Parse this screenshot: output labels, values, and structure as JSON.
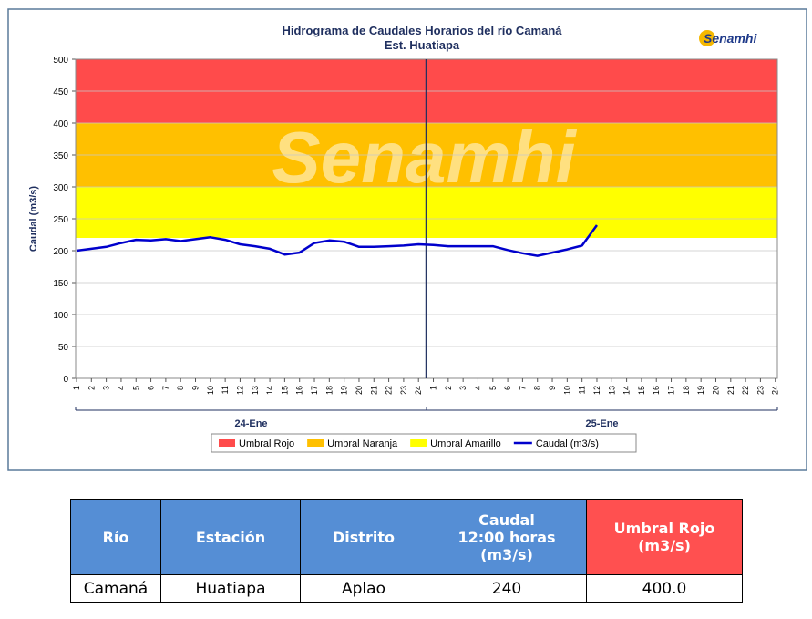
{
  "chart_data": {
    "type": "line",
    "title": "Hidrograma de Caudales Horarios del río Camaná",
    "subtitle": "Est. Huatiapa",
    "logo": "Senamhi",
    "watermark": "Senamhi",
    "y_label": "Caudal  (m3/s)",
    "categories": [
      "1",
      "2",
      "3",
      "4",
      "5",
      "6",
      "7",
      "8",
      "9",
      "10",
      "11",
      "12",
      "13",
      "14",
      "15",
      "16",
      "17",
      "18",
      "19",
      "20",
      "21",
      "22",
      "23",
      "24",
      "1",
      "2",
      "3",
      "4",
      "5",
      "6",
      "7",
      "8",
      "9",
      "10",
      "11",
      "12",
      "13",
      "14",
      "15",
      "16",
      "17",
      "18",
      "19",
      "20",
      "21",
      "22",
      "23",
      "24"
    ],
    "groups": [
      "24-Ene",
      "25-Ene"
    ],
    "bands": [
      {
        "name": "Umbral Rojo",
        "color": "#ff4b4b",
        "range": [
          400,
          500
        ]
      },
      {
        "name": "Umbral Naranja",
        "color": "#ffc000",
        "range": [
          300,
          400
        ]
      },
      {
        "name": "Umbral Amarillo",
        "color": "#ffff00",
        "range": [
          220,
          300
        ]
      }
    ],
    "series": [
      {
        "name": "Caudal (m3/s)",
        "color": "#0000cc",
        "values": [
          200,
          203,
          206,
          212,
          217,
          216,
          218,
          215,
          218,
          221,
          217,
          210,
          207,
          203,
          194,
          197,
          212,
          216,
          214,
          206,
          206,
          207,
          208,
          210,
          209,
          207,
          207,
          207,
          207,
          201,
          196,
          192,
          197,
          202,
          208,
          240,
          null,
          null,
          null,
          null,
          null,
          null,
          null,
          null,
          null,
          null,
          null,
          null
        ]
      }
    ],
    "ylim": [
      0,
      500
    ],
    "yticks": [
      0,
      50,
      100,
      150,
      200,
      250,
      300,
      350,
      400,
      450,
      500
    ],
    "grid": true
  },
  "table": {
    "header": [
      "Río",
      "Estación",
      "Distrito",
      "Caudal 12:00 horas (m3/s)",
      "Umbral  Rojo (m3/s)"
    ],
    "row": [
      "Camaná",
      "Huatiapa",
      "Aplao",
      240,
      "400.0"
    ]
  }
}
